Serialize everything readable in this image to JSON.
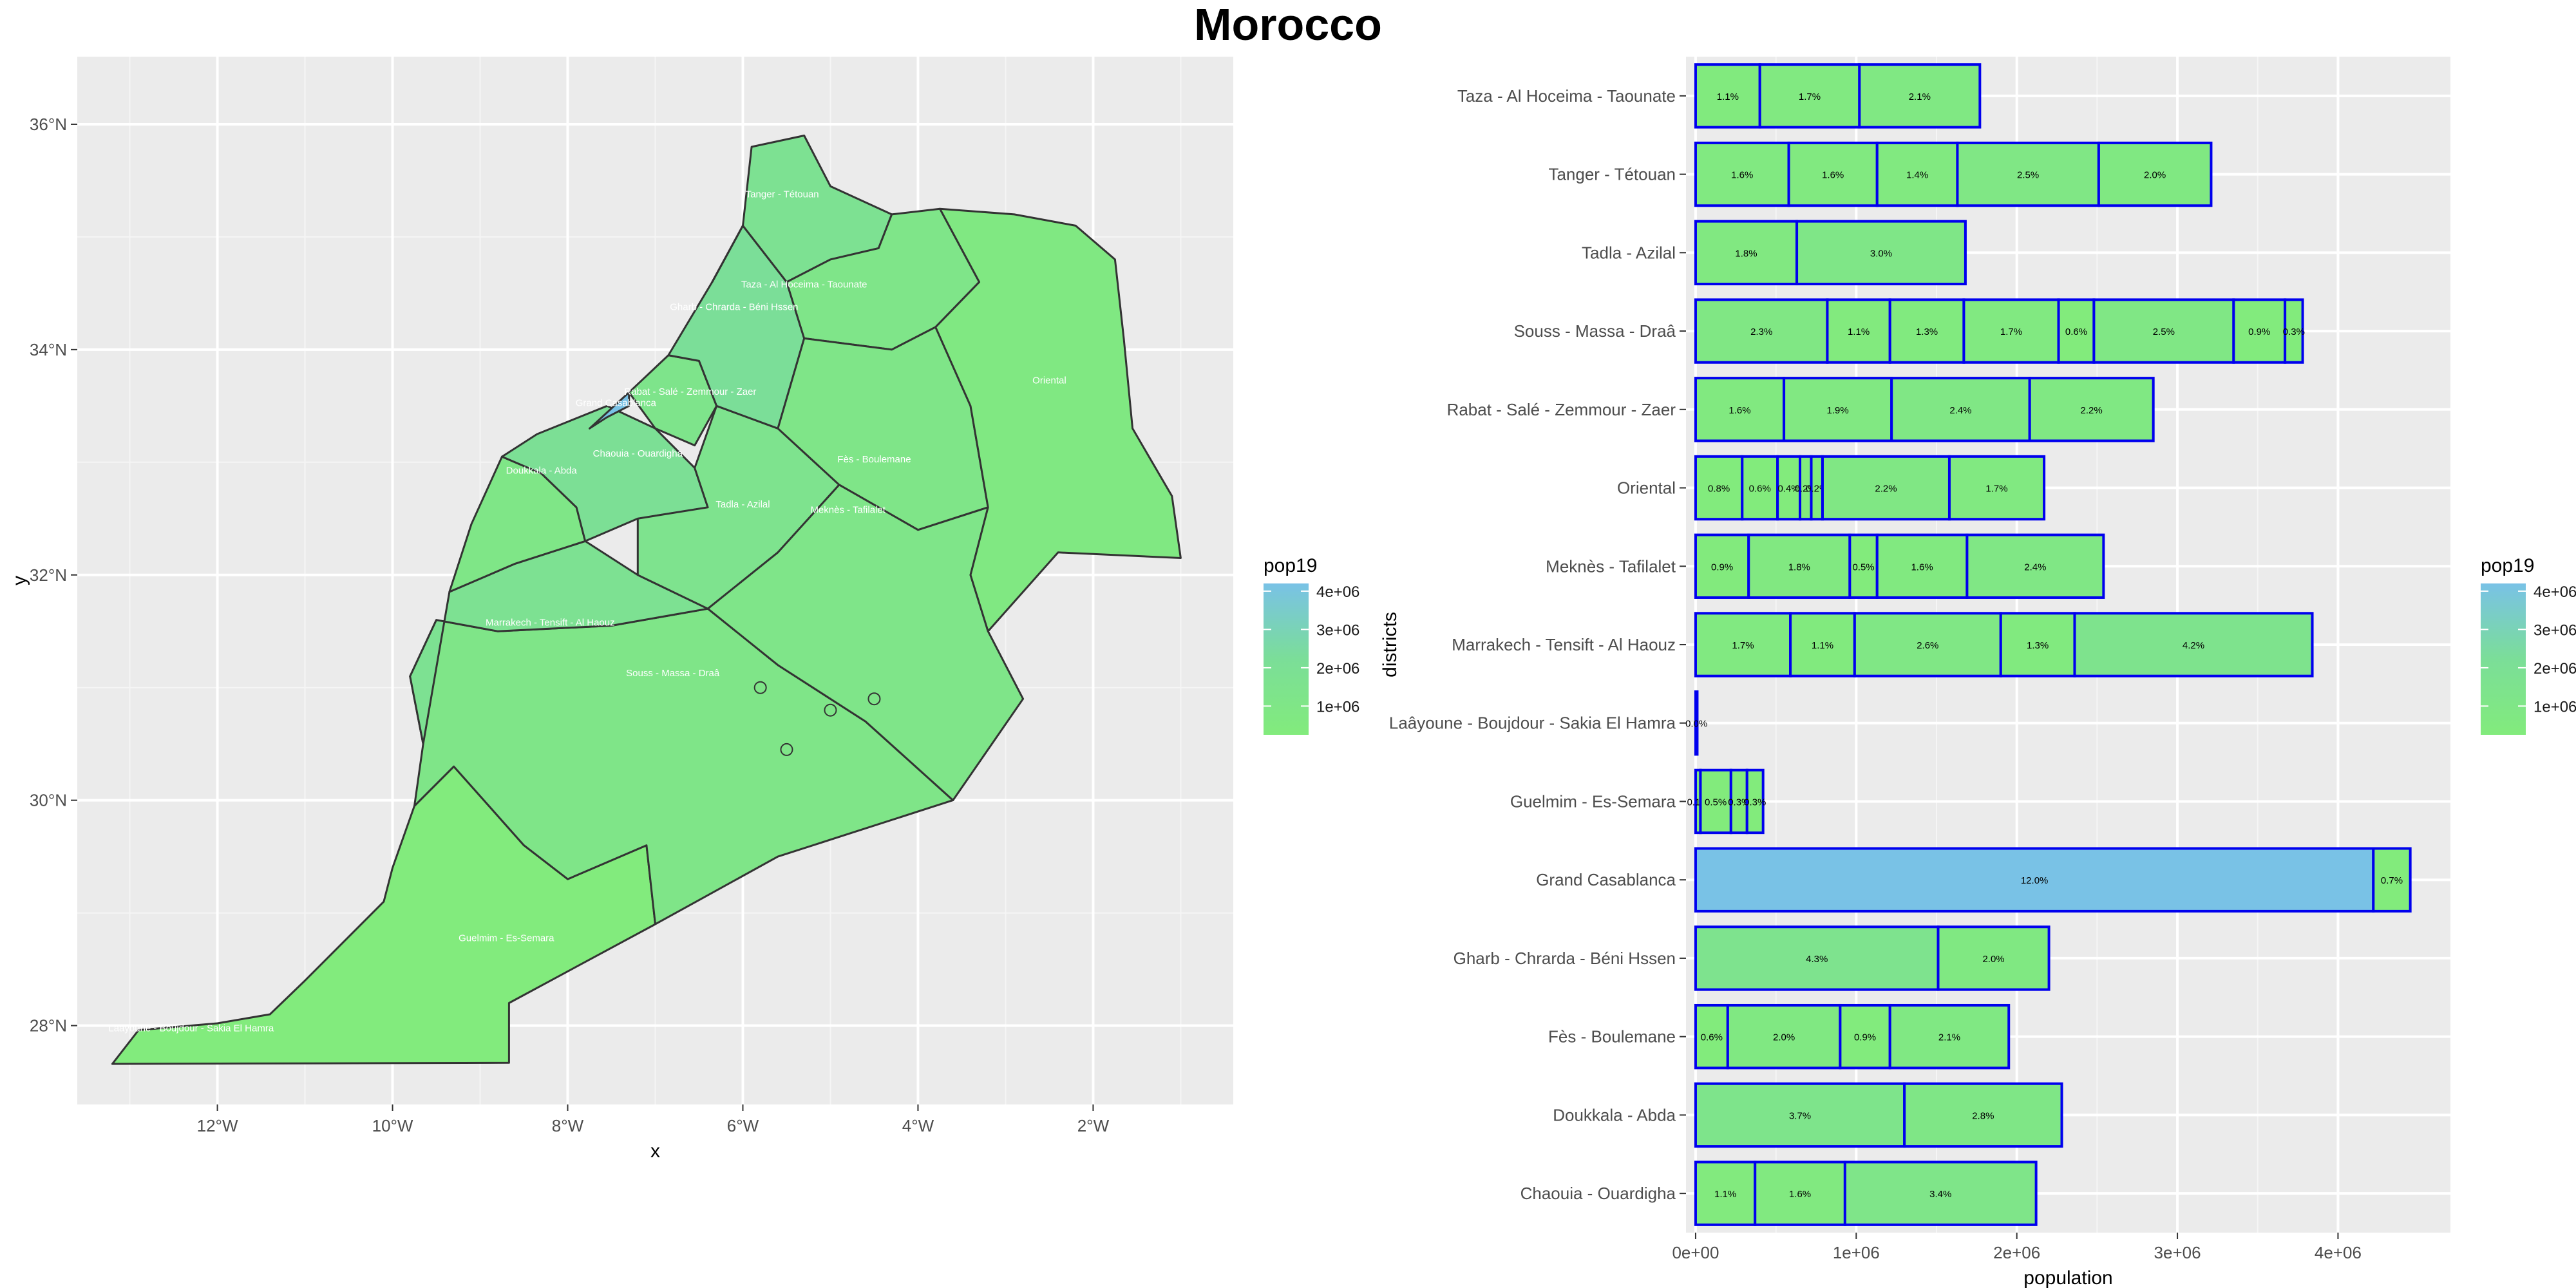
{
  "title": "Morocco",
  "chart_data": [
    {
      "type": "map",
      "xlabel": "x",
      "ylabel": "y",
      "x_ticks": [
        "12°W",
        "10°W",
        "8°W",
        "6°W",
        "4°W",
        "2°W"
      ],
      "x_tick_values": [
        -12,
        -10,
        -8,
        -6,
        -4,
        -2
      ],
      "y_ticks": [
        "28°N",
        "30°N",
        "32°N",
        "34°N",
        "36°N"
      ],
      "y_tick_values": [
        28,
        30,
        32,
        34,
        36
      ],
      "xlim": [
        -13.6,
        -0.4
      ],
      "ylim": [
        27.3,
        36.6
      ],
      "fill_variable": "pop19",
      "legend": {
        "title": "pop19",
        "labels": [
          "4e+06",
          "3e+06",
          "2e+06",
          "1e+06"
        ],
        "values": [
          4000000,
          3000000,
          2000000,
          1000000
        ],
        "colors": [
          "#79C2E6",
          "#7BD3B0",
          "#7ADD99",
          "#82EB7C"
        ],
        "position": "right"
      },
      "fill_colors": {
        "low": "#82EB7C",
        "mid": "#7BDE98",
        "high": "#79C2E6"
      },
      "region_labels": [
        "Taza - Al Hoceima - Taounate",
        "Tanger - Tétouan",
        "Oriental",
        "Gharb - Chrarda - Béni Hssen",
        "Fès - Boulemane",
        "Meknès - Tafilalet",
        "Chaouia - Ouardigha",
        "Doukkala - Abda",
        "Tadla - Azilal",
        "Marrakech - Tensift - Al Haouz",
        "Souss - Massa - Draâ",
        "Guelmim - Es-Semara",
        "Laâyoune - Boujdour - Sakia El Hamra",
        "Grand Casablanca",
        "Rabat - Salé - Zemmour - Zaer"
      ]
    },
    {
      "type": "bar",
      "orientation": "horizontal",
      "stacked": true,
      "xlabel": "population",
      "ylabel": "districts",
      "x_ticks": [
        "0e+00",
        "1e+06",
        "2e+06",
        "3e+06",
        "4e+06"
      ],
      "x_tick_values": [
        0,
        1000000,
        2000000,
        3000000,
        4000000
      ],
      "xlim": [
        -60000,
        4700000
      ],
      "categories": [
        "Chaouia - Ouardigha",
        "Doukkala - Abda",
        "Fès - Boulemane",
        "Gharb - Chrarda - Béni Hssen",
        "Grand Casablanca",
        "Guelmim - Es-Semara",
        "Laâyoune - Boujdour - Sakia El Hamra",
        "Marrakech - Tensift - Al Haouz",
        "Meknès - Tafilalet",
        "Oriental",
        "Rabat - Salé - Zemmour - Zaer",
        "Souss - Massa - Draâ",
        "Tadla - Azilal",
        "Tanger - Tétouan",
        "Taza - Al Hoceima - Taounate"
      ],
      "segments": [
        [
          {
            "v": 370000,
            "label": "1.1%"
          },
          {
            "v": 560000,
            "label": "1.6%"
          },
          {
            "v": 1190000,
            "label": "3.4%"
          }
        ],
        [
          {
            "v": 1300000,
            "label": "3.7%"
          },
          {
            "v": 980000,
            "label": "2.8%"
          }
        ],
        [
          {
            "v": 200000,
            "label": "0.6%"
          },
          {
            "v": 700000,
            "label": "2.0%"
          },
          {
            "v": 310000,
            "label": "0.9%"
          },
          {
            "v": 740000,
            "label": "2.1%"
          }
        ],
        [
          {
            "v": 1510000,
            "label": "4.3%"
          },
          {
            "v": 690000,
            "label": "2.0%"
          }
        ],
        [
          {
            "v": 4220000,
            "label": "12.0%"
          },
          {
            "v": 230000,
            "label": "0.7%"
          }
        ],
        [
          {
            "v": 30000,
            "label": "0.1%"
          },
          {
            "v": 190000,
            "label": "0.5%"
          },
          {
            "v": 100000,
            "label": "0.3%"
          },
          {
            "v": 100000,
            "label": "0.3%"
          }
        ],
        [
          {
            "v": 10000,
            "label": "0.0%"
          }
        ],
        [
          {
            "v": 590000,
            "label": "1.7%"
          },
          {
            "v": 400000,
            "label": "1.1%"
          },
          {
            "v": 910000,
            "label": "2.6%"
          },
          {
            "v": 460000,
            "label": "1.3%"
          },
          {
            "v": 1480000,
            "label": "4.2%"
          }
        ],
        [
          {
            "v": 330000,
            "label": "0.9%"
          },
          {
            "v": 630000,
            "label": "1.8%"
          },
          {
            "v": 170000,
            "label": "0.5%"
          },
          {
            "v": 560000,
            "label": "1.6%"
          },
          {
            "v": 850000,
            "label": "2.4%"
          }
        ],
        [
          {
            "v": 290000,
            "label": "0.8%"
          },
          {
            "v": 220000,
            "label": "0.6%"
          },
          {
            "v": 140000,
            "label": "0.4%"
          },
          {
            "v": 70000,
            "label": "0.2%"
          },
          {
            "v": 70000,
            "label": "0.2%"
          },
          {
            "v": 790000,
            "label": "2.2%"
          },
          {
            "v": 590000,
            "label": "1.7%"
          }
        ],
        [
          {
            "v": 550000,
            "label": "1.6%"
          },
          {
            "v": 670000,
            "label": "1.9%"
          },
          {
            "v": 860000,
            "label": "2.4%"
          },
          {
            "v": 770000,
            "label": "2.2%"
          }
        ],
        [
          {
            "v": 820000,
            "label": "2.3%"
          },
          {
            "v": 390000,
            "label": "1.1%"
          },
          {
            "v": 460000,
            "label": "1.3%"
          },
          {
            "v": 590000,
            "label": "1.7%"
          },
          {
            "v": 220000,
            "label": "0.6%"
          },
          {
            "v": 870000,
            "label": "2.5%"
          },
          {
            "v": 320000,
            "label": "0.9%"
          },
          {
            "v": 110000,
            "label": "0.3%"
          }
        ],
        [
          {
            "v": 630000,
            "label": "1.8%"
          },
          {
            "v": 1050000,
            "label": "3.0%"
          }
        ],
        [
          {
            "v": 580000,
            "label": "1.6%"
          },
          {
            "v": 550000,
            "label": "1.6%"
          },
          {
            "v": 500000,
            "label": "1.4%"
          },
          {
            "v": 880000,
            "label": "2.5%"
          },
          {
            "v": 700000,
            "label": "2.0%"
          }
        ],
        [
          {
            "v": 400000,
            "label": "1.1%"
          },
          {
            "v": 620000,
            "label": "1.7%"
          },
          {
            "v": 750000,
            "label": "2.1%"
          }
        ]
      ],
      "bar_outline": "#0000EE",
      "legend": {
        "title": "pop19",
        "labels": [
          "4e+06",
          "3e+06",
          "2e+06",
          "1e+06"
        ],
        "values": [
          4000000,
          3000000,
          2000000,
          1000000
        ],
        "position": "right"
      },
      "fill_colors": {
        "low": "#82EB7C",
        "mid": "#7BDE98",
        "high": "#79C2E6"
      }
    }
  ]
}
